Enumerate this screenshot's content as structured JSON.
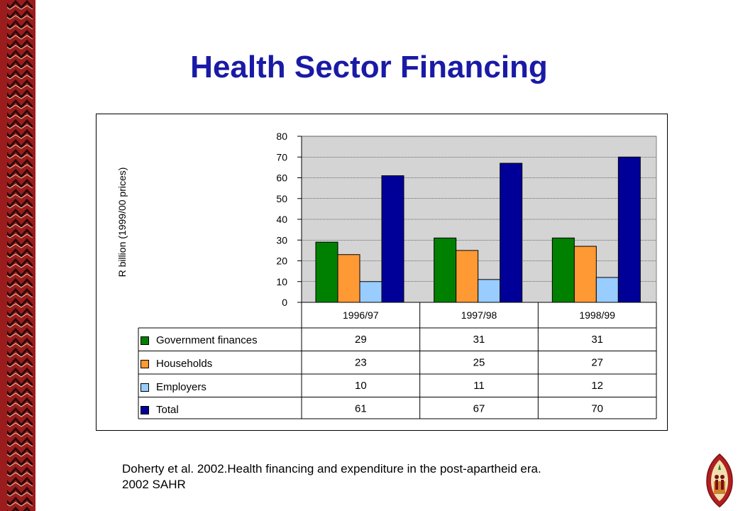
{
  "slide": {
    "title": "Health Sector Financing",
    "citation_line1": "Doherty et al. 2002.Health financing and expenditure in the post-apartheid era.",
    "citation_line2": "2002 SAHR"
  },
  "colors": {
    "title": "#1a1aa6",
    "plot_background": "#d4d4d4",
    "border_red": "#9b1c1c",
    "border_dark": "#2a0a0a"
  },
  "chart_data": {
    "type": "bar",
    "title": "",
    "ylabel": "R billion (1999/00 prices)",
    "xlabel": "",
    "ylim": [
      0,
      80
    ],
    "yticks": [
      0,
      10,
      20,
      30,
      40,
      50,
      60,
      70,
      80
    ],
    "grid": true,
    "legend_placement": "bottom-left (data table)",
    "categories": [
      "1996/97",
      "1997/98",
      "1998/99"
    ],
    "series": [
      {
        "name": "Government finances",
        "values": [
          29,
          31,
          31
        ],
        "color": "#008000"
      },
      {
        "name": "Households",
        "values": [
          23,
          25,
          27
        ],
        "color": "#ff9933"
      },
      {
        "name": "Employers",
        "values": [
          10,
          11,
          12
        ],
        "color": "#99ccff"
      },
      {
        "name": "Total",
        "values": [
          61,
          67,
          70
        ],
        "color": "#000099"
      }
    ],
    "table_values": [
      [
        "29",
        "31",
        "31"
      ],
      [
        "23",
        "25",
        "27"
      ],
      [
        "10",
        "11",
        "12"
      ],
      [
        "61",
        "67",
        "70"
      ]
    ]
  }
}
